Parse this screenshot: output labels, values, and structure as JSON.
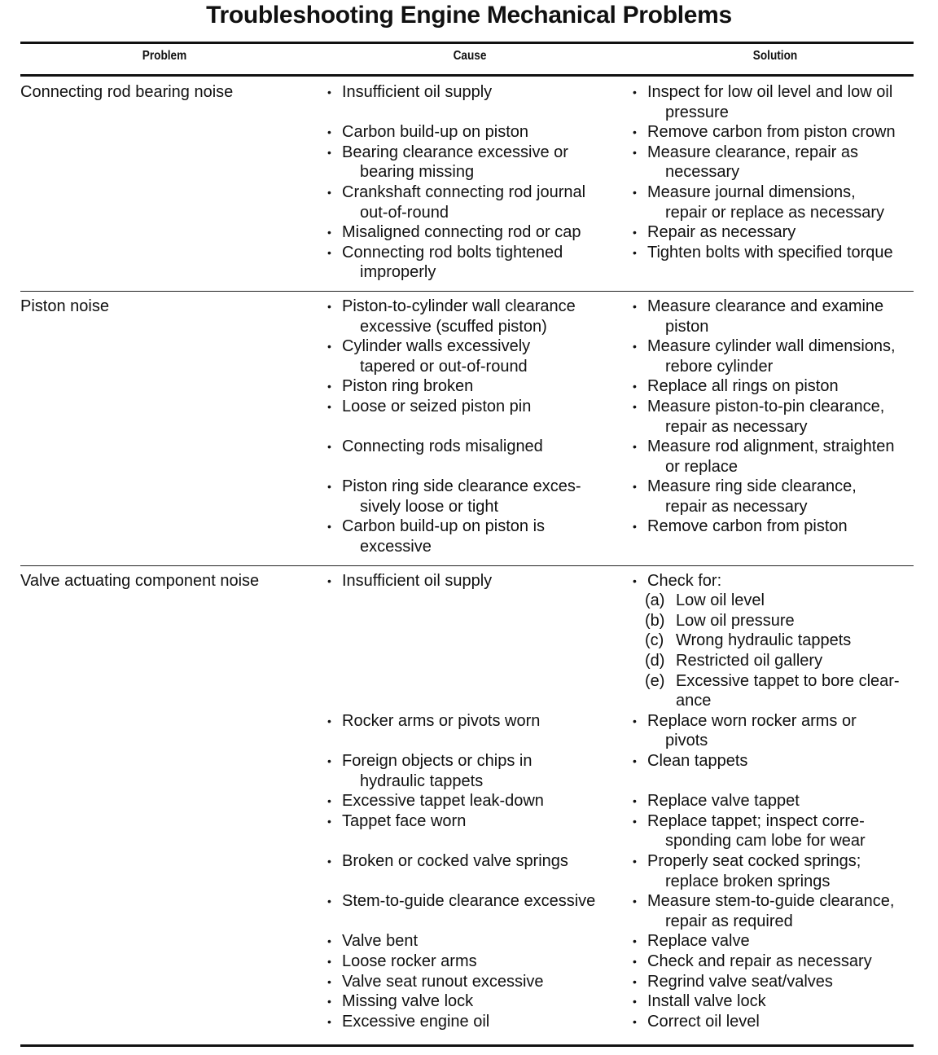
{
  "title": "Troubleshooting Engine Mechanical Problems",
  "headers": {
    "problem": "Problem",
    "cause": "Cause",
    "solution": "Solution"
  },
  "sections": [
    {
      "problem": "Connecting rod bearing noise",
      "rows": [
        {
          "cause": [
            "Insufficient oil supply"
          ],
          "solution": [
            "Inspect for low oil level and low oil",
            "pressure"
          ]
        },
        {
          "cause": [
            "Carbon build-up on piston"
          ],
          "solution": [
            "Remove carbon from piston crown"
          ]
        },
        {
          "cause": [
            "Bearing clearance excessive or",
            "bearing missing"
          ],
          "solution": [
            "Measure clearance, repair as",
            "necessary"
          ]
        },
        {
          "cause": [
            "Crankshaft connecting rod journal",
            "out-of-round"
          ],
          "solution": [
            "Measure journal dimensions,",
            "repair or replace as necessary"
          ]
        },
        {
          "cause": [
            "Misaligned connecting rod or cap"
          ],
          "solution": [
            "Repair as necessary"
          ]
        },
        {
          "cause": [
            "Connecting rod bolts tightened",
            "improperly"
          ],
          "solution": [
            "Tighten bolts with specified torque"
          ]
        }
      ]
    },
    {
      "problem": "Piston noise",
      "rows": [
        {
          "cause": [
            "Piston-to-cylinder wall clearance",
            "excessive (scuffed piston)"
          ],
          "solution": [
            "Measure clearance and examine",
            "piston"
          ]
        },
        {
          "cause": [
            "Cylinder walls excessively",
            "tapered or out-of-round"
          ],
          "solution": [
            "Measure cylinder wall dimensions,",
            "rebore cylinder"
          ]
        },
        {
          "cause": [
            "Piston ring broken"
          ],
          "solution": [
            "Replace all rings on piston"
          ]
        },
        {
          "cause": [
            "Loose or seized piston pin"
          ],
          "solution": [
            "Measure piston-to-pin clearance,",
            "repair as necessary"
          ]
        },
        {
          "cause": [
            "Connecting rods misaligned"
          ],
          "solution": [
            "Measure rod alignment, straighten",
            "or replace"
          ]
        },
        {
          "cause": [
            "Piston ring side clearance exces-",
            "sively loose or tight"
          ],
          "solution": [
            "Measure ring side clearance,",
            "repair as necessary"
          ]
        },
        {
          "cause": [
            "Carbon build-up on piston is",
            "excessive"
          ],
          "solution": [
            "Remove carbon from piston"
          ]
        }
      ]
    },
    {
      "problem": "Valve actuating component noise",
      "rows": [
        {
          "cause": [
            "Insufficient oil supply"
          ],
          "solution": [
            "Check for:"
          ],
          "subitems": [
            {
              "label": "(a)",
              "lines": [
                "Low oil level"
              ]
            },
            {
              "label": "(b)",
              "lines": [
                "Low oil pressure"
              ]
            },
            {
              "label": "(c)",
              "lines": [
                "Wrong hydraulic tappets"
              ]
            },
            {
              "label": "(d)",
              "lines": [
                "Restricted oil gallery"
              ]
            },
            {
              "label": "(e)",
              "lines": [
                "Excessive tappet to bore clear-",
                "ance"
              ]
            }
          ]
        },
        {
          "cause": [
            "Rocker arms or pivots worn"
          ],
          "solution": [
            "Replace worn rocker arms or",
            "pivots"
          ]
        },
        {
          "cause": [
            "Foreign objects or chips in",
            "hydraulic tappets"
          ],
          "solution": [
            "Clean tappets"
          ]
        },
        {
          "cause": [
            "Excessive tappet leak-down"
          ],
          "solution": [
            "Replace valve tappet"
          ]
        },
        {
          "cause": [
            "Tappet face worn"
          ],
          "solution": [
            "Replace tappet; inspect corre-",
            "sponding cam lobe for wear"
          ]
        },
        {
          "cause": [
            "Broken or cocked valve springs"
          ],
          "solution": [
            "Properly seat cocked springs;",
            "replace broken springs"
          ]
        },
        {
          "cause": [
            "Stem-to-guide clearance excessive"
          ],
          "solution": [
            "Measure stem-to-guide clearance,",
            "repair as required"
          ]
        },
        {
          "cause": [
            "Valve bent"
          ],
          "solution": [
            "Replace valve"
          ]
        },
        {
          "cause": [
            "Loose rocker arms"
          ],
          "solution": [
            "Check and repair as necessary"
          ]
        },
        {
          "cause": [
            "Valve seat runout excessive"
          ],
          "solution": [
            "Regrind valve seat/valves"
          ]
        },
        {
          "cause": [
            "Missing valve lock"
          ],
          "solution": [
            "Install valve lock"
          ]
        },
        {
          "cause": [
            "Excessive engine oil"
          ],
          "solution": [
            "Correct oil level"
          ]
        }
      ]
    }
  ]
}
